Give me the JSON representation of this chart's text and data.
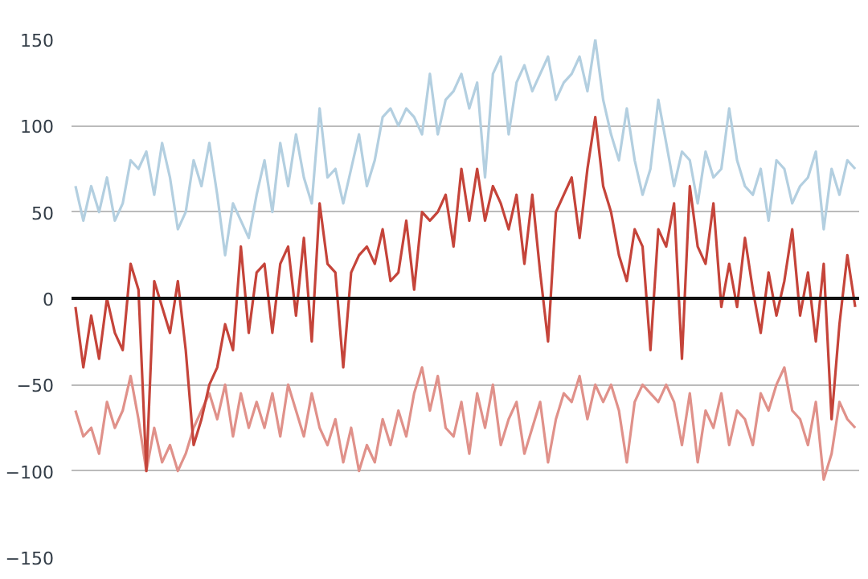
{
  "chart_data": {
    "type": "line",
    "categories": [
      null,
      null,
      null,
      null,
      null,
      null,
      null,
      null,
      null,
      null,
      null,
      null,
      null,
      null,
      null,
      null,
      null,
      null,
      null,
      null,
      null,
      null,
      null,
      null,
      null,
      null,
      null,
      null,
      null,
      null,
      null,
      null,
      null,
      null,
      null,
      null,
      null,
      null,
      null,
      null,
      null,
      null,
      null,
      null,
      null,
      null,
      null,
      null,
      null,
      null,
      null,
      null,
      null,
      null,
      null,
      null,
      null,
      null,
      null,
      null,
      null,
      null,
      null,
      null,
      null,
      null,
      null,
      null,
      null,
      null,
      null,
      null,
      null,
      null,
      null,
      null,
      null,
      null,
      null,
      null,
      null,
      null,
      null,
      null,
      null,
      null,
      null,
      null,
      null,
      null,
      null,
      null,
      null,
      null,
      null,
      null,
      null,
      null,
      null,
      null
    ],
    "series": [
      {
        "color": "#b3cfe0",
        "values": [
          65,
          45,
          65,
          50,
          70,
          45,
          55,
          80,
          75,
          85,
          60,
          90,
          70,
          40,
          50,
          80,
          65,
          90,
          60,
          25,
          55,
          45,
          35,
          60,
          80,
          50,
          90,
          65,
          95,
          70,
          55,
          110,
          70,
          75,
          55,
          75,
          95,
          65,
          80,
          105,
          110,
          100,
          110,
          105,
          95,
          130,
          95,
          115,
          120,
          130,
          110,
          125,
          70,
          130,
          140,
          95,
          125,
          135,
          120,
          130,
          140,
          115,
          125,
          130,
          140,
          120,
          150,
          115,
          95,
          80,
          110,
          80,
          60,
          75,
          115,
          90,
          65,
          85,
          80,
          55,
          85,
          70,
          75,
          110,
          80,
          65,
          60,
          75,
          45,
          80,
          75,
          55,
          65,
          70,
          85,
          40,
          75,
          60,
          80,
          75
        ]
      },
      {
        "color": "#e0918a",
        "values": [
          -65,
          -80,
          -75,
          -90,
          -60,
          -75,
          -65,
          -45,
          -70,
          -100,
          -75,
          -95,
          -85,
          -100,
          -90,
          -75,
          -65,
          -55,
          -70,
          -50,
          -80,
          -55,
          -75,
          -60,
          -75,
          -55,
          -80,
          -50,
          -65,
          -80,
          -55,
          -75,
          -85,
          -70,
          -95,
          -75,
          -100,
          -85,
          -95,
          -70,
          -85,
          -65,
          -80,
          -55,
          -40,
          -65,
          -45,
          -75,
          -80,
          -60,
          -90,
          -55,
          -75,
          -50,
          -85,
          -70,
          -60,
          -90,
          -75,
          -60,
          -95,
          -70,
          -55,
          -60,
          -45,
          -70,
          -50,
          -60,
          -50,
          -65,
          -95,
          -60,
          -50,
          -55,
          -60,
          -50,
          -60,
          -85,
          -55,
          -95,
          -65,
          -75,
          -55,
          -85,
          -65,
          -70,
          -85,
          -55,
          -65,
          -50,
          -40,
          -65,
          -70,
          -85,
          -60,
          -105,
          -90,
          -60,
          -70,
          -75
        ]
      },
      {
        "color": "#c5443a",
        "values": [
          -5,
          -40,
          -10,
          -35,
          0,
          -20,
          -30,
          20,
          5,
          -100,
          10,
          -5,
          -20,
          10,
          -30,
          -85,
          -70,
          -50,
          -40,
          -15,
          -30,
          30,
          -20,
          15,
          20,
          -20,
          20,
          30,
          -10,
          35,
          -25,
          55,
          20,
          15,
          -40,
          15,
          25,
          30,
          20,
          40,
          10,
          15,
          45,
          5,
          50,
          45,
          50,
          60,
          30,
          75,
          45,
          75,
          45,
          65,
          55,
          40,
          60,
          20,
          60,
          15,
          -25,
          50,
          60,
          70,
          35,
          75,
          105,
          65,
          50,
          25,
          10,
          40,
          30,
          -30,
          40,
          30,
          55,
          -35,
          65,
          30,
          20,
          55,
          -5,
          20,
          -5,
          35,
          5,
          -20,
          15,
          -10,
          10,
          40,
          -10,
          15,
          -25,
          20,
          -70,
          -15,
          25,
          -5
        ]
      }
    ],
    "ylim": [
      -150,
      150
    ],
    "yticks": [
      -150,
      -100,
      -50,
      0,
      50,
      100,
      150
    ],
    "grid": "y",
    "ref_lines": [
      {
        "axis": "y",
        "value": 0,
        "color": "#111111"
      }
    ]
  }
}
